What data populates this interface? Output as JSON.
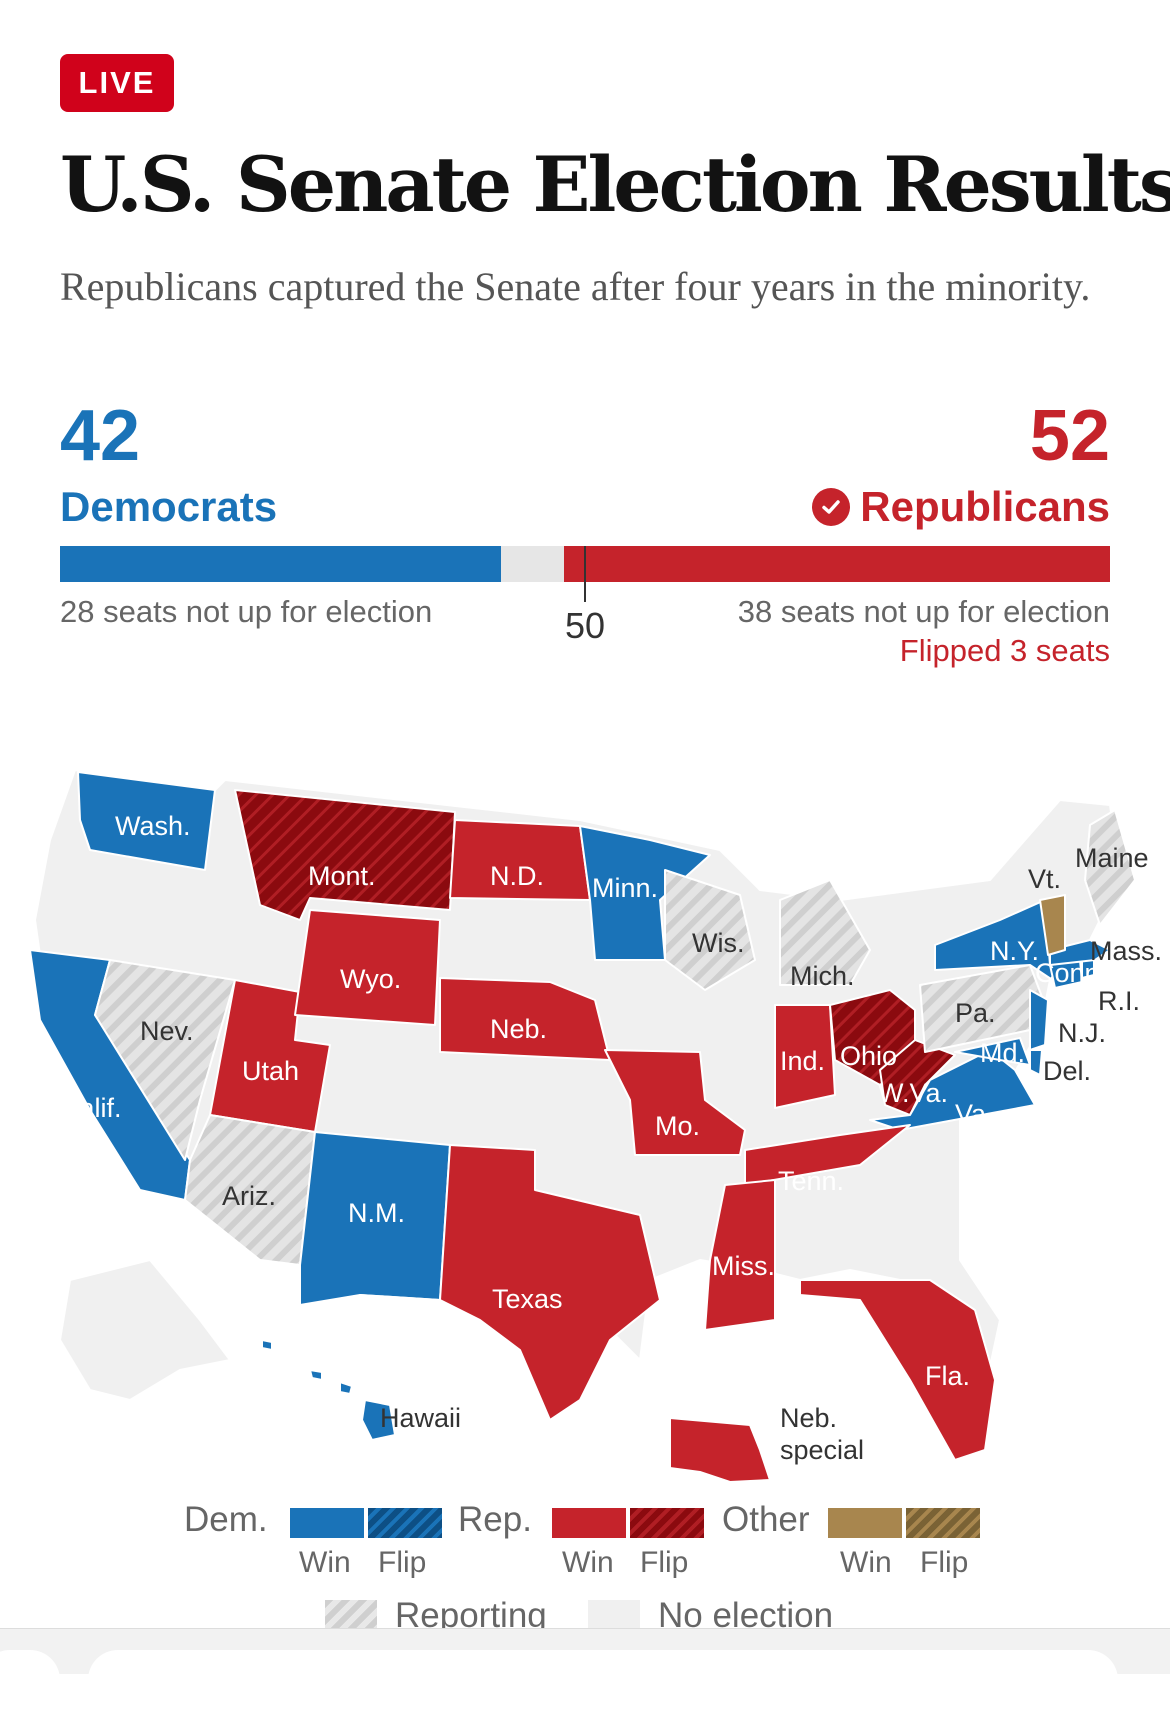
{
  "badge": "LIVE",
  "title": "U.S. Senate Election Results",
  "subtitle": "Republicans captured the Senate after four years in the minority.",
  "democrats": {
    "count": "42",
    "label": "Democrats",
    "note": "28 seats not up for election",
    "seats": 42
  },
  "republicans": {
    "count": "52",
    "label": "Republicans",
    "note": "38 seats not up for election",
    "flipped": "Flipped 3 seats",
    "seats": 52,
    "winner": true
  },
  "majority_label": "50",
  "total_seats": 100,
  "colors": {
    "dem": "#1a73b8",
    "rep": "#c5232b",
    "rep_flip": "#8b0a0f",
    "other": "#a8864e",
    "no_election": "#f0f0f0",
    "reporting": "#d6d6d6"
  },
  "states": [
    {
      "name": "Wash.",
      "result": "dem-win"
    },
    {
      "name": "Mont.",
      "result": "rep-flip"
    },
    {
      "name": "N.D.",
      "result": "rep-win"
    },
    {
      "name": "Minn.",
      "result": "dem-win"
    },
    {
      "name": "Wis.",
      "result": "reporting"
    },
    {
      "name": "Mich.",
      "result": "reporting"
    },
    {
      "name": "Vt.",
      "result": "other-win"
    },
    {
      "name": "Maine",
      "result": "reporting"
    },
    {
      "name": "N.Y.",
      "result": "dem-win"
    },
    {
      "name": "Mass.",
      "result": "dem-win"
    },
    {
      "name": "Conn.",
      "result": "dem-win"
    },
    {
      "name": "R.I.",
      "result": "dem-win"
    },
    {
      "name": "N.J.",
      "result": "dem-win"
    },
    {
      "name": "Del.",
      "result": "dem-win"
    },
    {
      "name": "Md.",
      "result": "dem-win"
    },
    {
      "name": "Pa.",
      "result": "reporting"
    },
    {
      "name": "Ohio",
      "result": "rep-flip"
    },
    {
      "name": "W.Va.",
      "result": "rep-flip"
    },
    {
      "name": "Va.",
      "result": "dem-win"
    },
    {
      "name": "Ind.",
      "result": "rep-win"
    },
    {
      "name": "Wyo.",
      "result": "rep-win"
    },
    {
      "name": "Neb.",
      "result": "rep-win"
    },
    {
      "name": "Nev.",
      "result": "reporting"
    },
    {
      "name": "Utah",
      "result": "rep-win"
    },
    {
      "name": "Calif.",
      "result": "dem-win"
    },
    {
      "name": "Mo.",
      "result": "rep-win"
    },
    {
      "name": "Tenn.",
      "result": "rep-win"
    },
    {
      "name": "Ariz.",
      "result": "reporting"
    },
    {
      "name": "N.M.",
      "result": "dem-win"
    },
    {
      "name": "Texas",
      "result": "rep-win"
    },
    {
      "name": "Miss.",
      "result": "rep-win"
    },
    {
      "name": "Fla.",
      "result": "rep-win"
    },
    {
      "name": "Hawaii",
      "result": "dem-win"
    },
    {
      "name": "Neb. special",
      "result": "rep-win"
    }
  ],
  "legend": {
    "dem": "Dem.",
    "rep": "Rep.",
    "other": "Other",
    "win": "Win",
    "flip": "Flip",
    "reporting": "Reporting",
    "no_election": "No election"
  }
}
